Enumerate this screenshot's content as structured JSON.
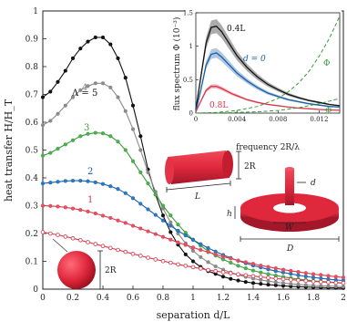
{
  "chart_data": [
    {
      "type": "line",
      "xlabel": "separation d/L",
      "ylabel": "heat transfer H/H_T",
      "xlim": [
        0,
        2
      ],
      "ylim": [
        0,
        1
      ],
      "x_ticks": [
        "0",
        "0.2",
        "0.4",
        "0.6",
        "0.8",
        "1",
        "1.2",
        "1.4",
        "1.6",
        "1.8",
        "2"
      ],
      "y_ticks": [
        "0",
        "0.1",
        "0.2",
        "0.3",
        "0.4",
        "0.5",
        "0.6",
        "0.7",
        "0.8",
        "0.9",
        "1"
      ],
      "grid": false,
      "series": [
        {
          "name": "Λ = 5",
          "color": "#111111",
          "fill": "#111111",
          "x": [
            0,
            0.05,
            0.1,
            0.15,
            0.2,
            0.25,
            0.3,
            0.35,
            0.4,
            0.45,
            0.5,
            0.55,
            0.6,
            0.65,
            0.7,
            0.75,
            0.8,
            0.85,
            0.9,
            0.95,
            1.0,
            1.05,
            1.1,
            1.15,
            1.2,
            1.25,
            1.3,
            1.35,
            1.4,
            1.45,
            1.5,
            1.55,
            1.6,
            1.65,
            1.7,
            1.75,
            1.8,
            1.85,
            1.9,
            1.95,
            2.0
          ],
          "y": [
            0.69,
            0.71,
            0.745,
            0.785,
            0.83,
            0.865,
            0.89,
            0.905,
            0.905,
            0.88,
            0.83,
            0.76,
            0.66,
            0.55,
            0.43,
            0.34,
            0.265,
            0.205,
            0.16,
            0.125,
            0.1,
            0.08,
            0.065,
            0.055,
            0.045,
            0.037,
            0.031,
            0.026,
            0.022,
            0.019,
            0.016,
            0.014,
            0.012,
            0.01,
            0.009,
            0.008,
            0.007,
            0.006,
            0.005,
            0.0045,
            0.004
          ]
        },
        {
          "name": "4",
          "color": "#8a8a8a",
          "fill": "#8a8a8a",
          "x": [
            0,
            0.05,
            0.1,
            0.15,
            0.2,
            0.25,
            0.3,
            0.35,
            0.4,
            0.45,
            0.5,
            0.55,
            0.6,
            0.65,
            0.7,
            0.75,
            0.8,
            0.85,
            0.9,
            0.95,
            1.0,
            1.05,
            1.1,
            1.15,
            1.2,
            1.25,
            1.3,
            1.35,
            1.4,
            1.45,
            1.5,
            1.55,
            1.6,
            1.65,
            1.7,
            1.75,
            1.8,
            1.85,
            1.9,
            1.95,
            2.0
          ],
          "y": [
            0.59,
            0.605,
            0.63,
            0.66,
            0.69,
            0.715,
            0.73,
            0.74,
            0.74,
            0.725,
            0.69,
            0.64,
            0.575,
            0.5,
            0.42,
            0.35,
            0.29,
            0.24,
            0.2,
            0.165,
            0.138,
            0.115,
            0.097,
            0.082,
            0.07,
            0.06,
            0.051,
            0.044,
            0.038,
            0.033,
            0.029,
            0.025,
            0.022,
            0.019,
            0.017,
            0.015,
            0.013,
            0.012,
            0.011,
            0.01,
            0.009
          ]
        },
        {
          "name": "3",
          "color": "#3a9a3a",
          "fill": "#4caf50",
          "x": [
            0,
            0.05,
            0.1,
            0.15,
            0.2,
            0.25,
            0.3,
            0.35,
            0.4,
            0.45,
            0.5,
            0.55,
            0.6,
            0.65,
            0.7,
            0.75,
            0.8,
            0.85,
            0.9,
            0.95,
            1.0,
            1.05,
            1.1,
            1.15,
            1.2,
            1.25,
            1.3,
            1.35,
            1.4,
            1.45,
            1.5,
            1.55,
            1.6,
            1.65,
            1.7,
            1.75,
            1.8,
            1.85,
            1.9,
            1.95,
            2.0
          ],
          "y": [
            0.48,
            0.49,
            0.505,
            0.52,
            0.535,
            0.55,
            0.558,
            0.562,
            0.56,
            0.55,
            0.53,
            0.5,
            0.46,
            0.42,
            0.38,
            0.34,
            0.3,
            0.265,
            0.232,
            0.203,
            0.178,
            0.156,
            0.137,
            0.121,
            0.107,
            0.095,
            0.084,
            0.075,
            0.067,
            0.06,
            0.054,
            0.049,
            0.044,
            0.04,
            0.036,
            0.033,
            0.03,
            0.028,
            0.026,
            0.024,
            0.022
          ]
        },
        {
          "name": "2",
          "color": "#1a5fa8",
          "fill": "#2a78c8",
          "x": [
            0,
            0.05,
            0.1,
            0.15,
            0.2,
            0.25,
            0.3,
            0.35,
            0.4,
            0.45,
            0.5,
            0.55,
            0.6,
            0.65,
            0.7,
            0.75,
            0.8,
            0.85,
            0.9,
            0.95,
            1.0,
            1.05,
            1.1,
            1.15,
            1.2,
            1.25,
            1.3,
            1.35,
            1.4,
            1.45,
            1.5,
            1.55,
            1.6,
            1.65,
            1.7,
            1.75,
            1.8,
            1.85,
            1.9,
            1.95,
            2.0
          ],
          "y": [
            0.38,
            0.383,
            0.386,
            0.389,
            0.39,
            0.39,
            0.388,
            0.384,
            0.378,
            0.37,
            0.36,
            0.345,
            0.327,
            0.307,
            0.287,
            0.267,
            0.247,
            0.228,
            0.21,
            0.193,
            0.177,
            0.162,
            0.148,
            0.135,
            0.123,
            0.112,
            0.102,
            0.093,
            0.085,
            0.078,
            0.071,
            0.065,
            0.06,
            0.055,
            0.05,
            0.046,
            0.042,
            0.039,
            0.036,
            0.033,
            0.031
          ]
        },
        {
          "name": "1",
          "color": "#d9364a",
          "fill": "#e85060",
          "x": [
            0,
            0.05,
            0.1,
            0.15,
            0.2,
            0.25,
            0.3,
            0.35,
            0.4,
            0.45,
            0.5,
            0.55,
            0.6,
            0.65,
            0.7,
            0.75,
            0.8,
            0.85,
            0.9,
            0.95,
            1.0,
            1.05,
            1.1,
            1.15,
            1.2,
            1.25,
            1.3,
            1.35,
            1.4,
            1.45,
            1.5,
            1.55,
            1.6,
            1.65,
            1.7,
            1.75,
            1.8,
            1.85,
            1.9,
            1.95,
            2.0
          ],
          "y": [
            0.3,
            0.299,
            0.297,
            0.294,
            0.29,
            0.285,
            0.279,
            0.272,
            0.264,
            0.256,
            0.247,
            0.238,
            0.228,
            0.218,
            0.208,
            0.198,
            0.188,
            0.178,
            0.168,
            0.159,
            0.15,
            0.141,
            0.133,
            0.125,
            0.117,
            0.11,
            0.103,
            0.097,
            0.091,
            0.085,
            0.08,
            0.075,
            0.07,
            0.066,
            0.062,
            0.058,
            0.054,
            0.051,
            0.048,
            0.045,
            0.042
          ]
        },
        {
          "name": "",
          "color": "#d9364a",
          "fill": "none",
          "x": [
            0,
            0.05,
            0.1,
            0.15,
            0.2,
            0.25,
            0.3,
            0.35,
            0.4,
            0.45,
            0.5,
            0.55,
            0.6,
            0.65,
            0.7,
            0.75,
            0.8,
            0.85,
            0.9,
            0.95,
            1.0,
            1.05,
            1.1,
            1.15,
            1.2,
            1.25,
            1.3,
            1.35,
            1.4,
            1.45,
            1.5,
            1.55,
            1.6,
            1.65,
            1.7,
            1.75,
            1.8,
            1.85,
            1.9,
            1.95,
            2.0
          ],
          "y": [
            0.205,
            0.2,
            0.195,
            0.189,
            0.183,
            0.176,
            0.169,
            0.162,
            0.155,
            0.148,
            0.141,
            0.134,
            0.127,
            0.12,
            0.113,
            0.107,
            0.101,
            0.095,
            0.089,
            0.084,
            0.079,
            0.074,
            0.069,
            0.065,
            0.061,
            0.057,
            0.053,
            0.05,
            0.047,
            0.044,
            0.041,
            0.038,
            0.036,
            0.034,
            0.032,
            0.03,
            0.028,
            0.026,
            0.025,
            0.023,
            0.022
          ]
        }
      ]
    },
    {
      "type": "line",
      "xlabel": "frequency 2R/λ",
      "ylabel": "flux spectrum Φ (10⁻³)",
      "xlim": [
        0,
        0.014
      ],
      "ylim": [
        0,
        1.5
      ],
      "x_ticks": [
        "0",
        "0.004",
        "0.008",
        "0.012"
      ],
      "y_ticks": [
        "0",
        "0.5",
        "1",
        "1.5"
      ],
      "labels": [
        "0.4L",
        "d = 0",
        "0.8L",
        "Φ",
        "Φ"
      ],
      "series": [
        {
          "name": "0.4L",
          "color": "#111111",
          "x": [
            0,
            0.0005,
            0.001,
            0.0015,
            0.002,
            0.0025,
            0.003,
            0.0035,
            0.004,
            0.005,
            0.006,
            0.007,
            0.008,
            0.009,
            0.01,
            0.011,
            0.012,
            0.013,
            0.014
          ],
          "y": [
            0.05,
            0.55,
            1.05,
            1.28,
            1.3,
            1.22,
            1.1,
            0.98,
            0.86,
            0.68,
            0.54,
            0.43,
            0.35,
            0.28,
            0.23,
            0.19,
            0.16,
            0.13,
            0.11
          ]
        },
        {
          "name": "d = 0",
          "color": "#1a5fa8",
          "x": [
            0,
            0.0005,
            0.001,
            0.0015,
            0.002,
            0.0025,
            0.003,
            0.0035,
            0.004,
            0.005,
            0.006,
            0.007,
            0.008,
            0.009,
            0.01,
            0.011,
            0.012,
            0.013,
            0.014
          ],
          "y": [
            0.03,
            0.35,
            0.72,
            0.88,
            0.9,
            0.84,
            0.76,
            0.68,
            0.6,
            0.48,
            0.38,
            0.3,
            0.25,
            0.2,
            0.17,
            0.14,
            0.12,
            0.1,
            0.09
          ]
        },
        {
          "name": "0.8L",
          "color": "#d9364a",
          "x": [
            0,
            0.0005,
            0.001,
            0.0015,
            0.002,
            0.0025,
            0.003,
            0.0035,
            0.004,
            0.005,
            0.006,
            0.007,
            0.008,
            0.009,
            0.01,
            0.011,
            0.012,
            0.013,
            0.014
          ],
          "y": [
            0.02,
            0.18,
            0.34,
            0.4,
            0.4,
            0.37,
            0.33,
            0.29,
            0.26,
            0.2,
            0.16,
            0.13,
            0.11,
            0.09,
            0.075,
            0.065,
            0.055,
            0.048,
            0.042
          ]
        },
        {
          "name": "",
          "color": "#3a9a3a",
          "dash": true,
          "x": [
            0,
            0.002,
            0.004,
            0.006,
            0.008,
            0.009,
            0.01,
            0.011,
            0.012,
            0.013,
            0.014
          ],
          "y": [
            0,
            0.01,
            0.04,
            0.1,
            0.22,
            0.32,
            0.45,
            0.62,
            0.85,
            1.12,
            1.45
          ]
        },
        {
          "name": "",
          "color": "#3a9a3a",
          "dash": true,
          "x": [
            0.002,
            0.004,
            0.006,
            0.008,
            0.009,
            0.01,
            0.011,
            0.012,
            0.013,
            0.014
          ],
          "y": [
            0.0,
            0.01,
            0.02,
            0.04,
            0.06,
            0.08,
            0.11,
            0.14,
            0.18,
            0.22
          ]
        }
      ]
    }
  ],
  "diagram_labels": {
    "sphere": "2R",
    "cylinder_height": "2R",
    "cylinder_length": "L",
    "ring_d": "d",
    "ring_h": "h",
    "ring_w": "W",
    "ring_D": "D"
  },
  "colors": {
    "cylinder": "#e0283c",
    "cylinder_dark": "#a3172a",
    "sphere": "#e0283c"
  }
}
